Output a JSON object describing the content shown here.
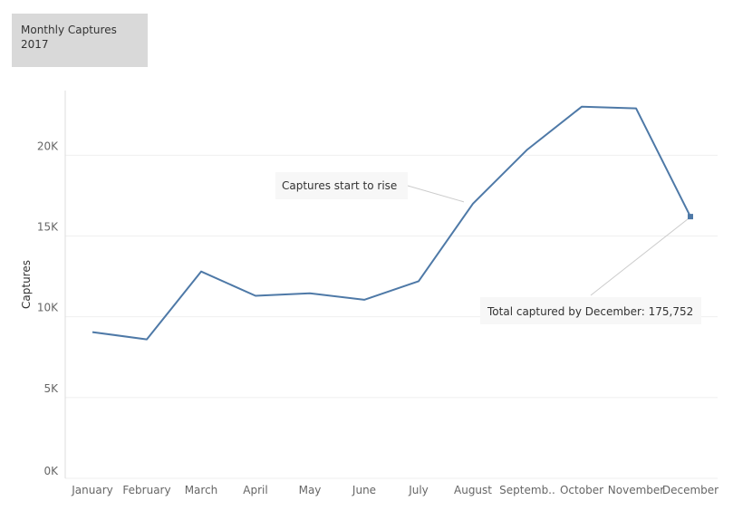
{
  "header": {
    "title": "Monthly Captures",
    "subtitle": "2017"
  },
  "chart_data": {
    "type": "line",
    "title": "Monthly Captures",
    "subtitle": "2017",
    "xlabel": "",
    "ylabel": "Captures",
    "categories": [
      "January",
      "February",
      "March",
      "April",
      "May",
      "June",
      "July",
      "August",
      "September",
      "October",
      "November",
      "December"
    ],
    "tick_labels": [
      "January",
      "February",
      "March",
      "April",
      "May",
      "June",
      "July",
      "August",
      "Septemb..",
      "October",
      "November",
      "December"
    ],
    "series": [
      {
        "values": [
          9050,
          8600,
          12800,
          11300,
          11450,
          11050,
          12200,
          17000,
          20350,
          23000,
          22900,
          16200
        ]
      }
    ],
    "ylim": [
      0,
      24000
    ],
    "yticks": [
      0,
      5000,
      10000,
      15000,
      20000
    ],
    "ytick_labels": [
      "0K",
      "5K",
      "10K",
      "15K",
      "20K"
    ],
    "grid": true,
    "colors": {
      "line": "#4e79a7",
      "grid": "#efefef",
      "axis": "#dddddd"
    },
    "annotations": [
      {
        "text": "Captures start to rise",
        "category": "August"
      },
      {
        "text": "Total captured by December: 175,752",
        "category": "December"
      }
    ]
  }
}
